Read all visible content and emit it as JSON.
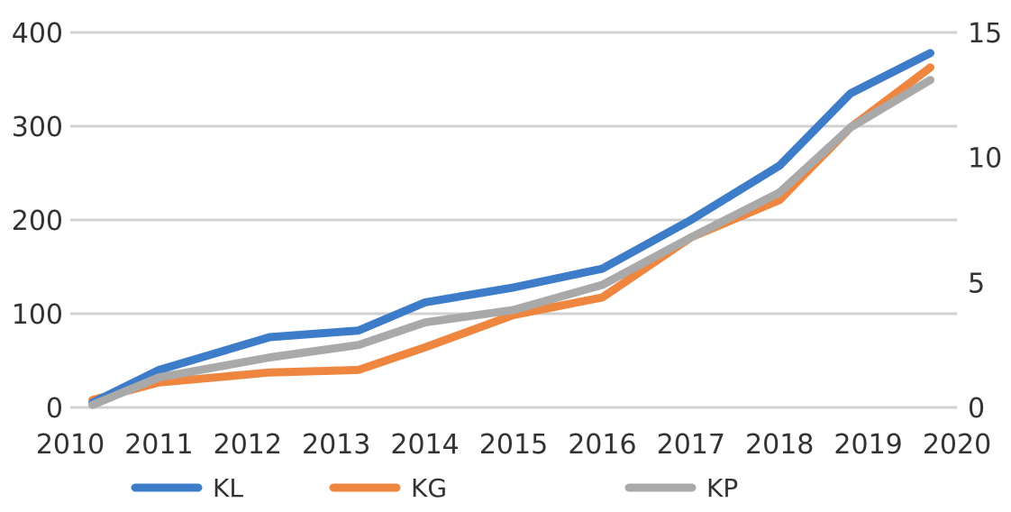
{
  "chart_data": {
    "type": "line",
    "x": [
      2010.25,
      2011,
      2012.25,
      2013.25,
      2014,
      2015,
      2016,
      2017,
      2018,
      2018.8,
      2019.7
    ],
    "x_ticks": [
      "2010",
      "2011",
      "2012",
      "2013",
      "2014",
      "2015",
      "2016",
      "2017",
      "2018",
      "2019",
      "2020"
    ],
    "y_left_ticks": [
      "0",
      "100",
      "200",
      "300",
      "400"
    ],
    "y_right_ticks": [
      "0",
      "5",
      "10",
      "15"
    ],
    "ylim_left": [
      0,
      400
    ],
    "ylim_right": [
      0,
      15
    ],
    "grid": true,
    "legend_position": "bottom",
    "series": [
      {
        "name": "KL",
        "axis": "left",
        "color": "#3d7cc9",
        "values": [
          5,
          40,
          75,
          82,
          112,
          128,
          148,
          200,
          258,
          335,
          378
        ]
      },
      {
        "name": "KG",
        "axis": "right",
        "color": "#ee8640",
        "values": [
          0.3,
          1.0,
          1.4,
          1.5,
          2.4,
          3.7,
          4.4,
          6.8,
          8.3,
          11.2,
          13.6
        ]
      },
      {
        "name": "KP",
        "axis": "right",
        "color": "#a9a9a9",
        "values": [
          0.1,
          1.2,
          2.0,
          2.5,
          3.4,
          3.9,
          4.9,
          6.8,
          8.6,
          11.2,
          13.1
        ]
      }
    ]
  }
}
